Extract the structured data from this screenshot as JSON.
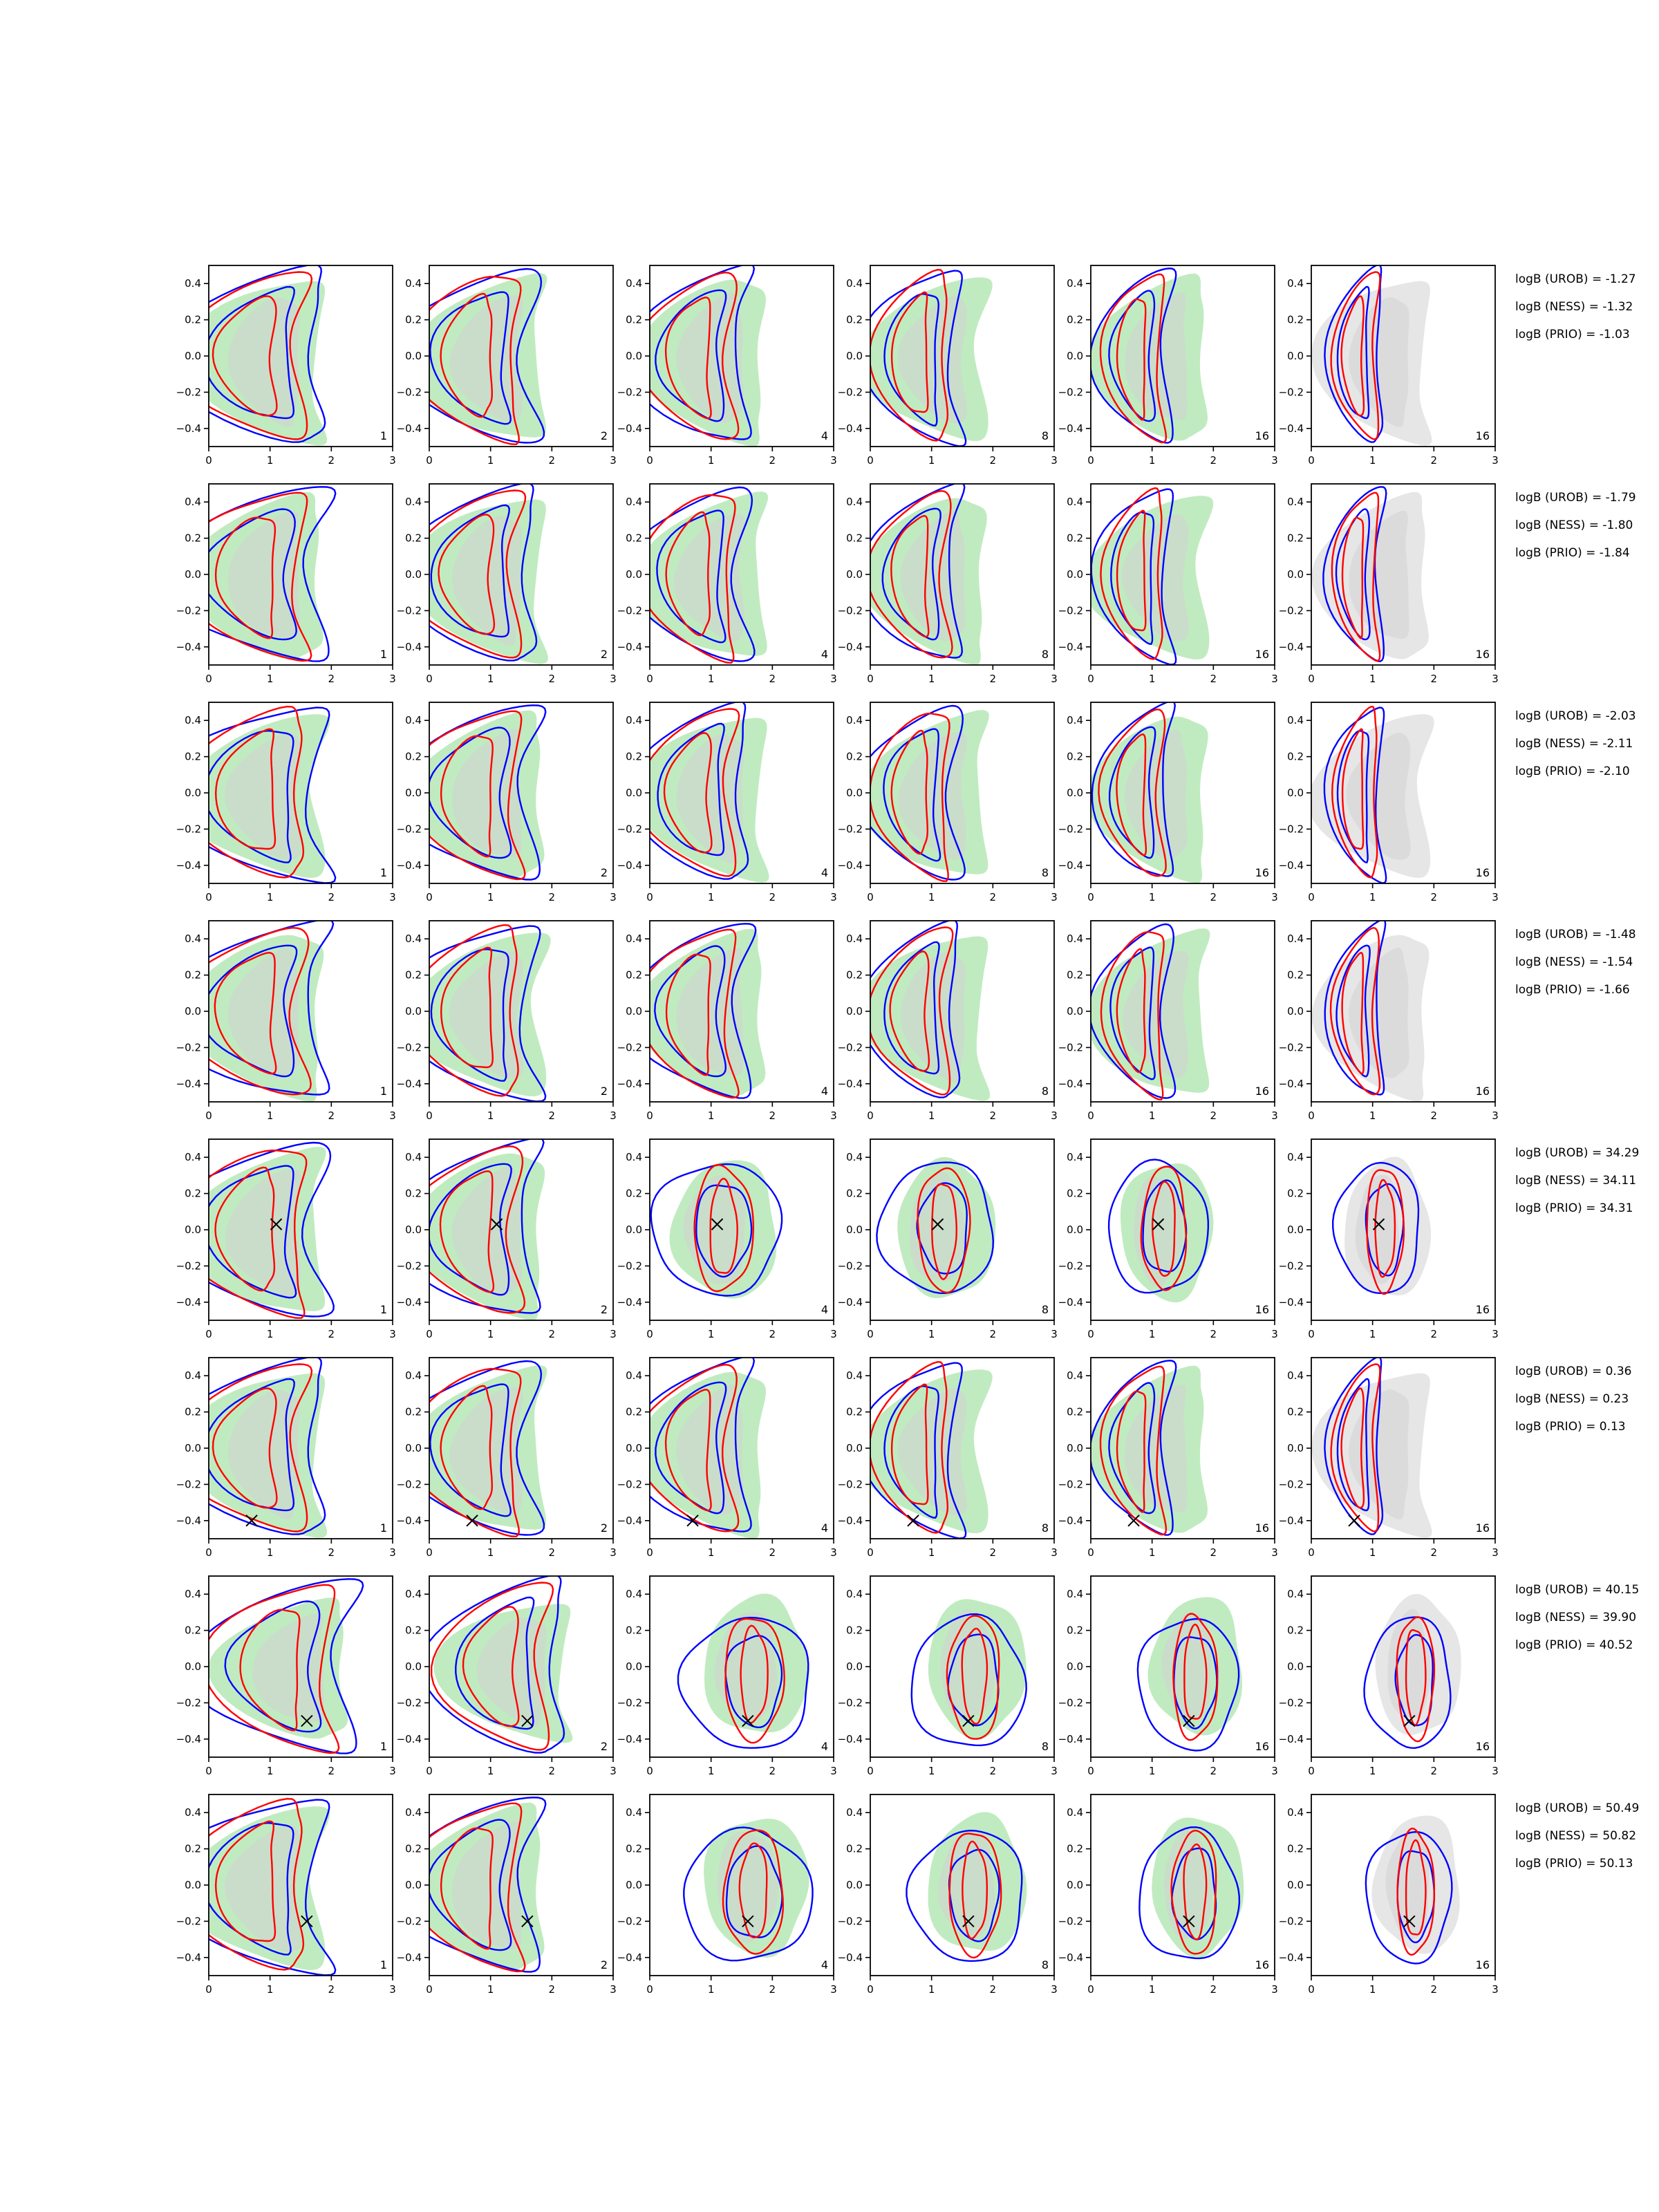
{
  "figure": {
    "description_free": true,
    "colors": {
      "green_fill": "#b9e9b9",
      "gray_fill": "#d2d2d2",
      "red": "#ff0000",
      "blue": "#0000ff",
      "marker": "#000000"
    }
  },
  "chart_data": {
    "type": "contour-grid",
    "xlim": [
      0,
      3
    ],
    "ylim": [
      -0.5,
      0.5
    ],
    "xticks": [
      "0",
      "1",
      "2",
      "3"
    ],
    "yticks": [
      "0.4",
      "0.2",
      "0.0",
      "−0.2",
      "−0.4"
    ],
    "grid": false,
    "column_labels": [
      "1",
      "2",
      "4",
      "8",
      "16",
      "16"
    ],
    "rows": [
      {
        "annotations": [
          "logB (UROB) = -1.27",
          "logB (NESS) = -1.32",
          "logB (PRIO) = -1.03"
        ],
        "marker": null
      },
      {
        "annotations": [
          "logB (UROB) = -1.79",
          "logB (NESS) = -1.80",
          "logB (PRIO) = -1.84"
        ],
        "marker": null
      },
      {
        "annotations": [
          "logB (UROB) = -2.03",
          "logB (NESS) = -2.11",
          "logB (PRIO) = -2.10"
        ],
        "marker": null
      },
      {
        "annotations": [
          "logB (UROB) = -1.48",
          "logB (NESS) = -1.54",
          "logB (PRIO) = -1.66"
        ],
        "marker": null
      },
      {
        "annotations": [
          "logB (UROB) = 34.29",
          "logB (NESS) = 34.11",
          "logB (PRIO) = 34.31"
        ],
        "marker": {
          "x": 1.1,
          "y": 0.03
        }
      },
      {
        "annotations": [
          "logB (UROB) = 0.36",
          "logB (NESS) = 0.23",
          "logB (PRIO) = 0.13"
        ],
        "marker": {
          "x": 0.7,
          "y": -0.4
        }
      },
      {
        "annotations": [
          "logB (UROB) = 40.15",
          "logB (NESS) = 39.90",
          "logB (PRIO) = 40.52"
        ],
        "marker": {
          "x": 1.6,
          "y": -0.3
        }
      },
      {
        "annotations": [
          "logB (UROB) = 50.49",
          "logB (NESS) = 50.82",
          "logB (PRIO) = 50.13"
        ],
        "marker": {
          "x": 1.6,
          "y": -0.2
        }
      }
    ]
  }
}
